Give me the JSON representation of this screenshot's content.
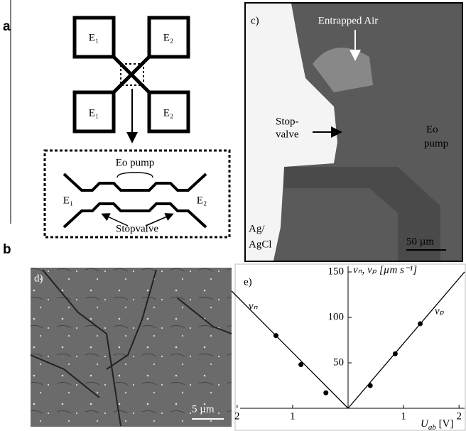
{
  "panels": {
    "a": {
      "label": "a",
      "electrodes": [
        "E₁",
        "E₂",
        "E₁",
        "E₂"
      ],
      "pump": "Eo pump",
      "left": "E₁",
      "right": "E₂",
      "valve": "Stopvalve"
    },
    "b": {
      "label": "b"
    },
    "c": {
      "label": "c)",
      "air": "Entrapped Air",
      "stop": [
        "Stop-",
        "valve"
      ],
      "pump": [
        "Eo",
        "pump"
      ],
      "electrode": [
        "Ag/",
        "AgCl"
      ],
      "scale": "50 µm"
    },
    "d": {
      "label": "d)",
      "scale": "5 µm"
    }
  },
  "chart_data": {
    "type": "scatter",
    "panel_label": "e)",
    "xlabel": {
      "main": "U",
      "sub": "ab",
      "unit": " [V]"
    },
    "ylabel": "vₙ, vₚ [µm s⁻¹]",
    "series": [
      {
        "name": "vₙ",
        "color": "#000",
        "x": [
          -1.3,
          -0.85,
          -0.4
        ],
        "values": [
          80,
          48,
          17
        ]
      },
      {
        "name": "vₚ",
        "color": "#000",
        "x": [
          0.4,
          0.85,
          1.3
        ],
        "values": [
          25,
          60,
          93
        ]
      }
    ],
    "fit_lines": [
      {
        "x": [
          -2.1,
          0
        ],
        "values": [
          129,
          0
        ]
      },
      {
        "x": [
          0,
          2.1
        ],
        "values": [
          0,
          150
        ]
      }
    ],
    "xlim": [
      -2.1,
      2.1
    ],
    "ylim": [
      0,
      150
    ],
    "xticks": [
      {
        "value": -2,
        "label": "2"
      },
      {
        "value": -1,
        "label": "1"
      },
      1,
      2
    ],
    "yticks": [
      50,
      100,
      150
    ]
  }
}
